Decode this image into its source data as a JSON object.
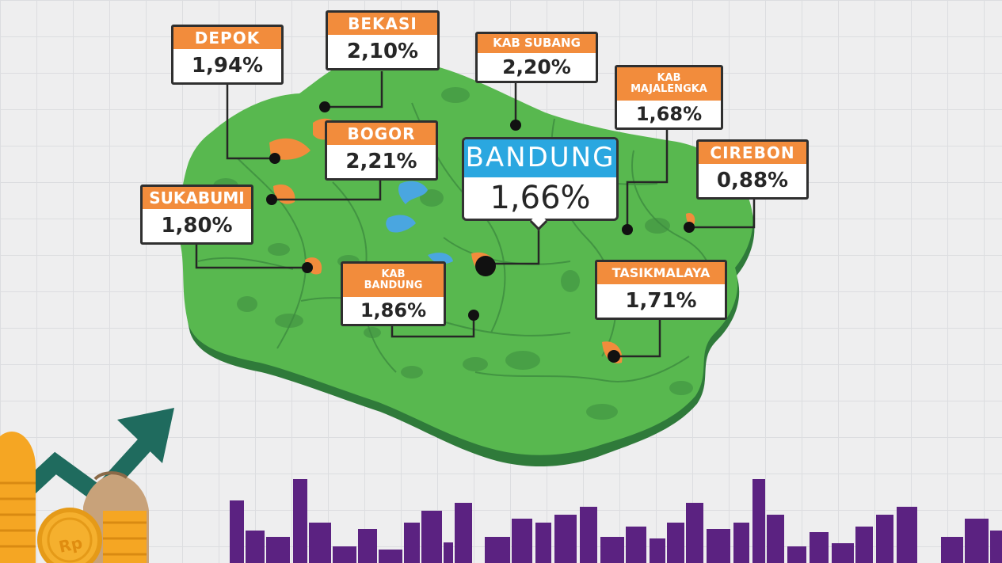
{
  "regions": [
    {
      "id": "depok",
      "name": "DEPOK",
      "value": "1,94%"
    },
    {
      "id": "bekasi",
      "name": "BEKASI",
      "value": "2,10%"
    },
    {
      "id": "kab-subang",
      "name": "KAB SUBANG",
      "value": "2,20%"
    },
    {
      "id": "kab-majalengka",
      "name": "KAB MAJALENGKA",
      "value": "1,68%"
    },
    {
      "id": "bogor",
      "name": "BOGOR",
      "value": "2,21%"
    },
    {
      "id": "bandung",
      "name": "BANDUNG",
      "value": "1,66%"
    },
    {
      "id": "cirebon",
      "name": "CIREBON",
      "value": "0,88%"
    },
    {
      "id": "sukabumi",
      "name": "SUKABUMI",
      "value": "1,80%"
    },
    {
      "id": "kab-bandung",
      "name": "KAB BANDUNG",
      "value": "1,86%"
    },
    {
      "id": "tasikmalaya",
      "name": "TASIKMALAYA",
      "value": "1,71%"
    }
  ],
  "decor": {
    "coin_symbol": "Rp"
  },
  "colors": {
    "land": "#58b84f",
    "land_dark": "#3d8c3f",
    "land_shadow": "#2f7a3a",
    "water": "#4aa6e0",
    "city": "#f28c3c",
    "label_header": "#f28c3c",
    "bandung_header": "#2aa7e0",
    "skyline": "#5b2281",
    "arrow": "#1f6b5e",
    "coin": "#f5a623"
  }
}
